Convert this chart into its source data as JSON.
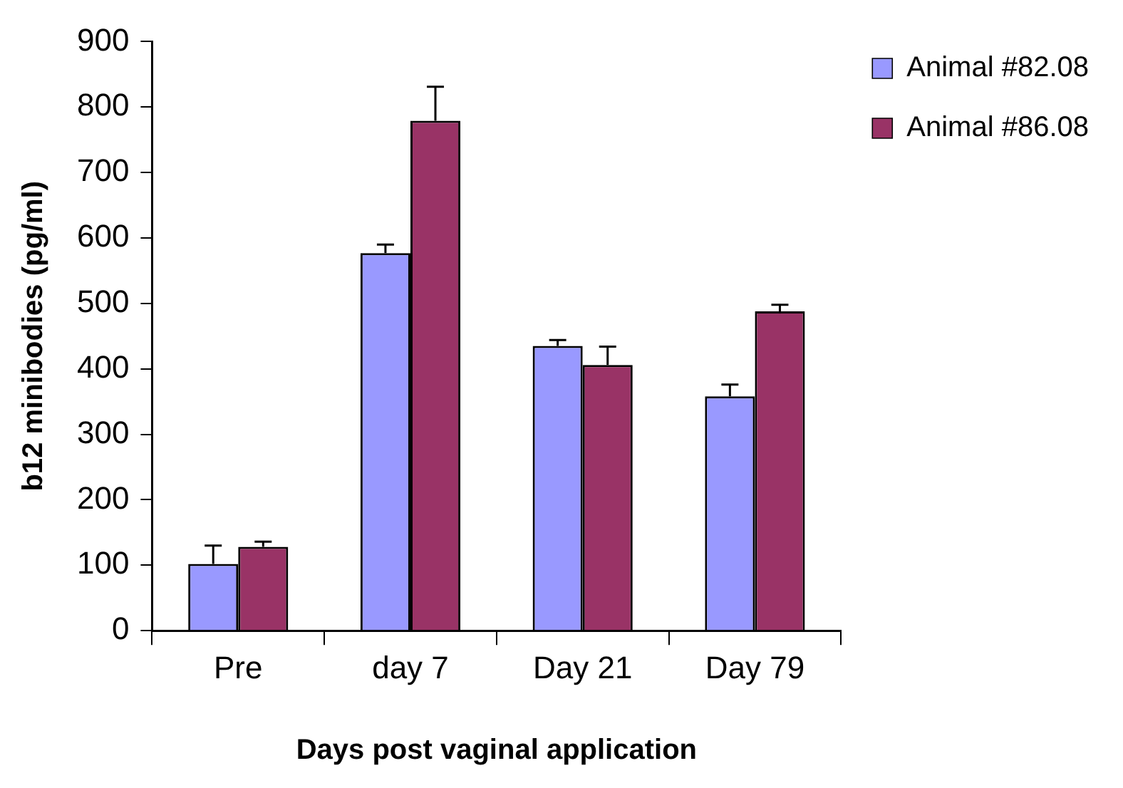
{
  "chart_data": {
    "type": "bar",
    "xlabel": "Days post vaginal application",
    "ylabel": "b12 minibodies (pg/ml)",
    "categories": [
      "Pre",
      "day 7",
      "Day 21",
      "Day 79"
    ],
    "series": [
      {
        "name": "Animal #82.08",
        "color": "#9999ff",
        "values": [
          102,
          577,
          435,
          358
        ],
        "errors": [
          28,
          13,
          9,
          18
        ]
      },
      {
        "name": "Animal #86.08",
        "color": "#993366",
        "values": [
          128,
          779,
          406,
          488
        ],
        "errors": [
          8,
          52,
          28,
          10
        ]
      }
    ],
    "ylim": [
      0,
      900
    ],
    "yticks": [
      0,
      100,
      200,
      300,
      400,
      500,
      600,
      700,
      800,
      900
    ],
    "grid": false,
    "legend": "top right"
  }
}
